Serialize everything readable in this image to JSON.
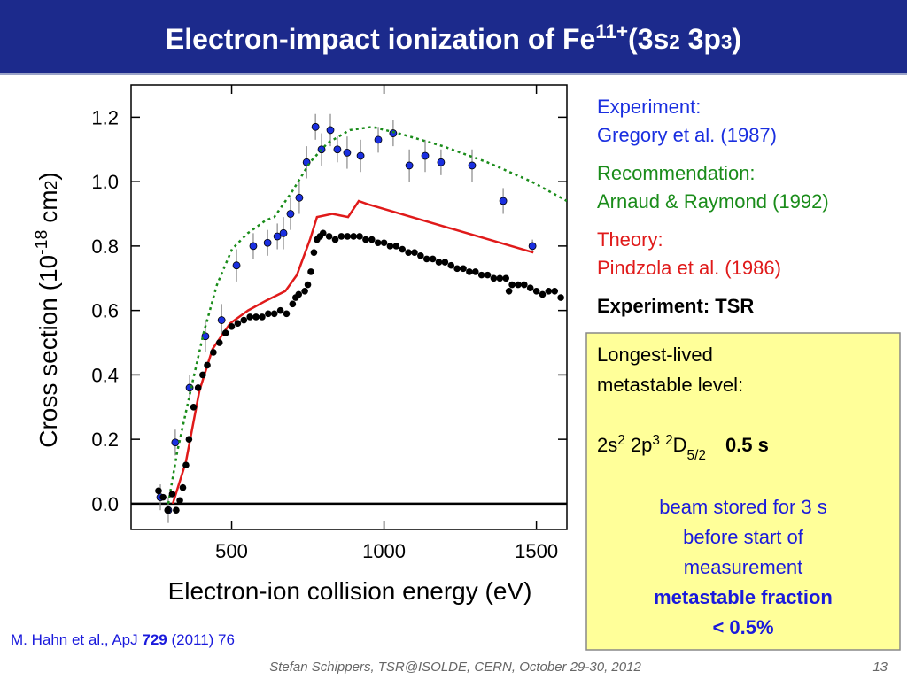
{
  "header": {
    "title": [
      "Electron-impact ionization of Fe",
      "11+",
      "(3s",
      "2",
      " 3p",
      "3",
      ")"
    ]
  },
  "chart_data": {
    "type": "scatter",
    "y_label": [
      "Cross section (10",
      "-18",
      " cm",
      "2",
      ")"
    ],
    "x_label": "Electron-ion collision energy (eV)",
    "xlim": [
      170,
      1600
    ],
    "xticks": [
      500,
      1000,
      1500
    ],
    "ylim": [
      -0.08,
      1.3
    ],
    "yticks": [
      {
        "value": 0,
        "label": "0.0"
      },
      0.2,
      0.4,
      0.6,
      0.8,
      {
        "value": 1,
        "label": "1.0"
      },
      1.2
    ],
    "series": [
      {
        "name": "Experiment:",
        "reference": "Gregory et al. (1987)",
        "color": "#1a2fe0",
        "style": "points",
        "x": [
          266,
          292,
          315,
          362,
          414,
          467,
          516,
          571,
          618,
          650,
          670,
          693,
          722,
          746,
          775,
          795,
          824,
          847,
          879,
          923,
          981,
          1030,
          1083,
          1135,
          1187,
          1289,
          1391,
          1487
        ],
        "values": [
          0.02,
          -0.02,
          0.19,
          0.36,
          0.52,
          0.57,
          0.74,
          0.8,
          0.81,
          0.83,
          0.84,
          0.9,
          0.95,
          1.06,
          1.17,
          1.1,
          1.16,
          1.1,
          1.09,
          1.08,
          1.13,
          1.15,
          1.05,
          1.08,
          1.06,
          1.05,
          0.94,
          0.8
        ],
        "errors": [
          0.04,
          0.04,
          0.04,
          0.04,
          0.05,
          0.05,
          0.05,
          0.04,
          0.04,
          0.04,
          0.05,
          0.05,
          0.05,
          0.05,
          0.04,
          0.05,
          0.05,
          0.04,
          0.05,
          0.05,
          0.04,
          0.04,
          0.05,
          0.05,
          0.04,
          0.05,
          0.04,
          0.02
        ]
      },
      {
        "name": "Recommendation:",
        "reference": "Arnaud & Raymond (1992)",
        "color": "#1a8c1a",
        "style": "dotted",
        "x": [
          292,
          321,
          365,
          408,
          452,
          501,
          553,
          612,
          640,
          699,
          757,
          815,
          888,
          961,
          1048,
          1193,
          1339,
          1484,
          1600
        ],
        "values": [
          0,
          0.16,
          0.35,
          0.53,
          0.68,
          0.79,
          0.84,
          0.88,
          0.89,
          0.97,
          1.06,
          1.12,
          1.16,
          1.17,
          1.15,
          1.11,
          1.06,
          1,
          0.94
        ]
      },
      {
        "name": "Theory:",
        "reference": "Pindzola et al. (1986)",
        "color": "#e01a1a",
        "style": "line",
        "x": [
          307,
          350,
          394,
          437,
          495,
          554,
          612,
          676,
          714,
          757,
          780,
          830,
          882,
          917,
          946,
          1490
        ],
        "values": [
          0,
          0.13,
          0.35,
          0.48,
          0.56,
          0.6,
          0.63,
          0.66,
          0.71,
          0.82,
          0.89,
          0.9,
          0.89,
          0.94,
          0.93,
          0.78
        ]
      },
      {
        "name": "Experiment: TSR",
        "color": "#000000",
        "style": "points",
        "x": [
          260,
          275,
          290,
          305,
          318,
          330,
          340,
          350,
          360,
          375,
          390,
          405,
          420,
          440,
          460,
          480,
          500,
          520,
          540,
          560,
          580,
          600,
          620,
          640,
          660,
          680,
          700,
          710,
          720,
          740,
          750,
          760,
          770,
          780,
          790,
          800,
          820,
          840,
          860,
          880,
          900,
          920,
          940,
          960,
          980,
          1000,
          1020,
          1040,
          1060,
          1080,
          1100,
          1120,
          1140,
          1160,
          1180,
          1200,
          1220,
          1240,
          1260,
          1280,
          1300,
          1320,
          1340,
          1360,
          1380,
          1400,
          1410,
          1420,
          1440,
          1460,
          1480,
          1500,
          1520,
          1540,
          1560,
          1580
        ],
        "values": [
          0.04,
          0.02,
          -0.02,
          0.03,
          -0.02,
          0.01,
          0.05,
          0.12,
          0.2,
          0.3,
          0.36,
          0.4,
          0.43,
          0.47,
          0.5,
          0.53,
          0.55,
          0.56,
          0.57,
          0.58,
          0.58,
          0.58,
          0.59,
          0.59,
          0.6,
          0.59,
          0.62,
          0.64,
          0.65,
          0.66,
          0.68,
          0.72,
          0.78,
          0.82,
          0.83,
          0.84,
          0.83,
          0.82,
          0.83,
          0.83,
          0.83,
          0.83,
          0.82,
          0.82,
          0.81,
          0.81,
          0.8,
          0.8,
          0.79,
          0.78,
          0.78,
          0.77,
          0.76,
          0.76,
          0.75,
          0.75,
          0.74,
          0.73,
          0.73,
          0.72,
          0.72,
          0.71,
          0.71,
          0.7,
          0.7,
          0.7,
          0.66,
          0.68,
          0.68,
          0.68,
          0.67,
          0.66,
          0.65,
          0.66,
          0.66,
          0.64
        ]
      }
    ]
  },
  "note": {
    "lines": [
      "Longest-lived",
      "metastable level:"
    ],
    "level": [
      "2s",
      "2",
      " 2p",
      "3",
      " ",
      "2",
      "D",
      "5/2"
    ],
    "lifetime": "0.5 s",
    "storage": [
      "beam stored for 3 s",
      "before start of",
      "measurement"
    ],
    "fraction": [
      "metastable fraction",
      "< 0.5%"
    ]
  },
  "citation": [
    "M. Hahn et al.,  ApJ ",
    "729",
    " (2011) 76"
  ],
  "footer": {
    "text": "Stefan Schippers, TSR@ISOLDE, CERN,  October 29-30,  2012",
    "page": "13"
  }
}
